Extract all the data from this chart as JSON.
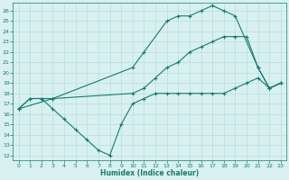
{
  "line1_x": [
    0,
    1,
    2,
    3,
    10,
    11,
    13,
    14,
    15,
    16,
    17,
    18,
    19,
    21,
    22,
    23
  ],
  "line1_y": [
    16.5,
    17.5,
    17.5,
    17.5,
    20.5,
    22.0,
    25.0,
    25.5,
    25.5,
    26.0,
    26.5,
    26.0,
    25.5,
    20.5,
    18.5,
    19.0
  ],
  "line2_x": [
    0,
    3,
    10,
    11,
    12,
    13,
    14,
    15,
    16,
    17,
    18,
    19,
    20,
    21,
    22,
    23
  ],
  "line2_y": [
    16.5,
    17.5,
    18.0,
    18.5,
    19.5,
    20.5,
    21.0,
    22.0,
    22.5,
    23.0,
    23.5,
    23.5,
    23.5,
    20.5,
    18.5,
    19.0
  ],
  "line3_x": [
    0,
    1,
    2,
    3,
    4,
    5,
    6,
    7,
    8,
    9,
    10,
    11,
    12,
    13,
    14,
    15,
    16,
    17,
    18,
    19,
    20,
    21,
    22,
    23
  ],
  "line3_y": [
    16.5,
    17.5,
    17.5,
    16.5,
    15.5,
    14.5,
    13.5,
    12.5,
    12.0,
    15.0,
    17.0,
    17.5,
    18.0,
    18.0,
    18.0,
    18.0,
    18.0,
    18.0,
    18.0,
    18.5,
    19.0,
    19.5,
    18.5,
    19.0
  ],
  "line_color": "#1a7a6e",
  "bg_color": "#d8f0f0",
  "grid_color": "#b8dede",
  "xlabel": "Humidex (Indice chaleur)",
  "xlim": [
    -0.5,
    23.5
  ],
  "ylim": [
    11.5,
    26.8
  ],
  "yticks": [
    12,
    13,
    14,
    15,
    16,
    17,
    18,
    19,
    20,
    21,
    22,
    23,
    24,
    25,
    26
  ],
  "xticks": [
    0,
    1,
    2,
    3,
    4,
    5,
    6,
    7,
    8,
    9,
    10,
    11,
    12,
    13,
    14,
    15,
    16,
    17,
    18,
    19,
    20,
    21,
    22,
    23
  ]
}
